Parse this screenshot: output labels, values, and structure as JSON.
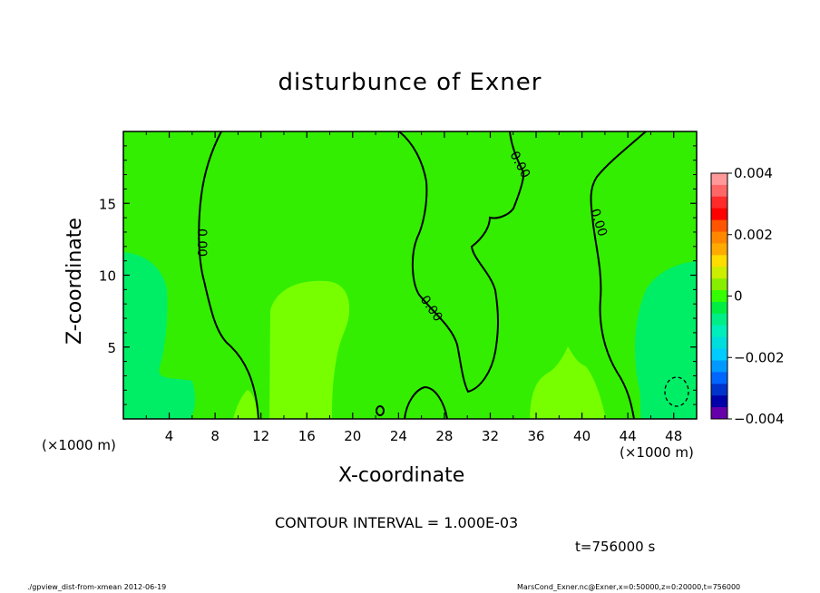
{
  "chart_data": {
    "type": "contour",
    "title": "disturbunce of Exner",
    "xlabel": "X-coordinate",
    "ylabel": "Z-coordinate",
    "x_unit_note": "(×1000 m)",
    "xlim": [
      0,
      50
    ],
    "ylim": [
      0,
      20
    ],
    "x_ticks": [
      4,
      8,
      12,
      16,
      20,
      24,
      28,
      32,
      36,
      40,
      44,
      48
    ],
    "y_ticks": [
      5,
      10,
      15
    ],
    "contour_interval_text": "CONTOUR INTERVAL = 1.000E-03",
    "time_text": "t=756000 s",
    "contour_labels": [
      "0.00",
      "0.00",
      "0.00",
      "0.00"
    ],
    "colorbar": {
      "min": -0.004,
      "max": 0.004,
      "tick_values": [
        0.004,
        0.002,
        0,
        -0.002,
        -0.004
      ],
      "tick_labels": [
        "0.004",
        "0.002",
        "0",
        "−0.002",
        "−0.004"
      ],
      "colors": [
        "#ff9999",
        "#ff6666",
        "#ff2a2a",
        "#ff0000",
        "#ff5500",
        "#ff8800",
        "#ffaa00",
        "#ffdd00",
        "#ccee00",
        "#88ee00",
        "#33ff00",
        "#00ee44",
        "#00ee88",
        "#00eebb",
        "#00dddd",
        "#00ccff",
        "#0099ff",
        "#0066ff",
        "#0033cc",
        "#0000aa",
        "#6600aa"
      ]
    }
  },
  "footer": {
    "left": "./gpview_dist-from-xmean  2012-06-19",
    "right": "MarsCond_Exner.nc@Exner,x=0:50000,z=0:20000,t=756000"
  }
}
